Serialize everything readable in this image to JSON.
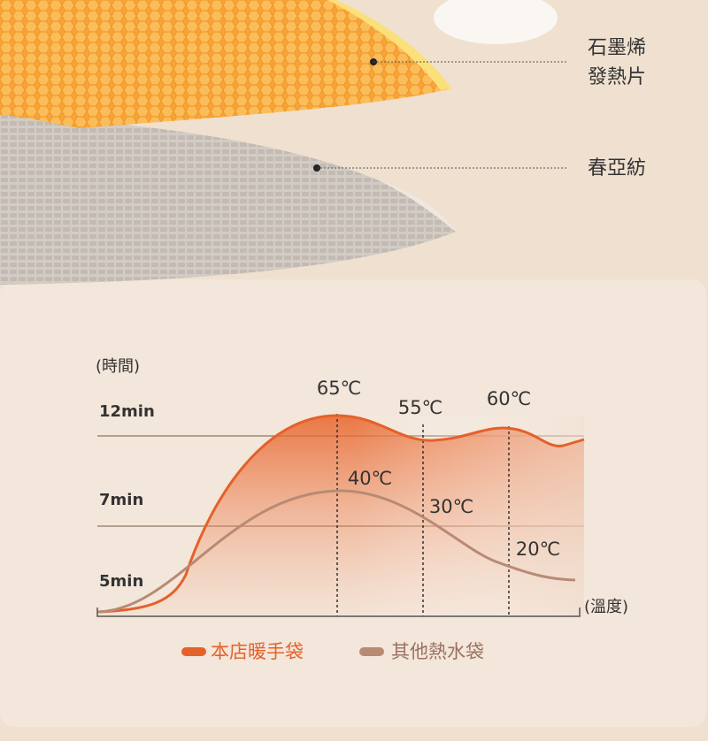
{
  "layers": [
    {
      "label_lines": [
        "石墨烯",
        "發熱片"
      ]
    },
    {
      "label_lines": [
        "春亞紡"
      ]
    }
  ],
  "chart": {
    "y_title": "(時間)",
    "y_labels": [
      "12min",
      "7min",
      "5min"
    ],
    "x_title": "(溫度)",
    "point_labels": [
      "65℃",
      "55℃",
      "60℃",
      "40℃",
      "30℃",
      "20℃"
    ],
    "legend": [
      "本店暖手袋",
      "其他熱水袋"
    ]
  }
}
